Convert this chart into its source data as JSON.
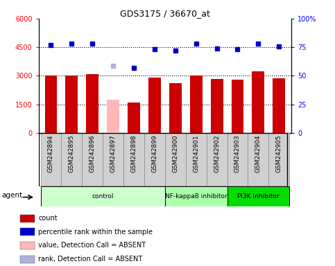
{
  "title": "GDS3175 / 36670_at",
  "samples": [
    "GSM242894",
    "GSM242895",
    "GSM242896",
    "GSM242897",
    "GSM242898",
    "GSM242899",
    "GSM242900",
    "GSM242901",
    "GSM242902",
    "GSM242903",
    "GSM242904",
    "GSM242905"
  ],
  "bar_values": [
    3000,
    3000,
    3100,
    1750,
    1600,
    2900,
    2600,
    3020,
    2820,
    2800,
    3250,
    2880
  ],
  "bar_colors": [
    "#cc0000",
    "#cc0000",
    "#cc0000",
    "#ffb8b8",
    "#cc0000",
    "#cc0000",
    "#cc0000",
    "#cc0000",
    "#cc0000",
    "#cc0000",
    "#cc0000",
    "#cc0000"
  ],
  "dot_values": [
    77,
    78,
    78,
    59,
    57,
    73,
    72,
    78,
    74,
    73,
    78,
    76
  ],
  "dot_colors": [
    "#0000cc",
    "#0000cc",
    "#0000cc",
    "#b0b0dd",
    "#0000cc",
    "#0000cc",
    "#0000cc",
    "#0000cc",
    "#0000cc",
    "#0000cc",
    "#0000cc",
    "#0000cc"
  ],
  "ylim_left": [
    0,
    6000
  ],
  "ylim_right": [
    0,
    100
  ],
  "yticks_left": [
    0,
    1500,
    3000,
    4500,
    6000
  ],
  "ytick_labels_left": [
    "0",
    "1500",
    "3000",
    "4500",
    "6000"
  ],
  "yticks_right": [
    0,
    25,
    50,
    75,
    100
  ],
  "ytick_labels_right": [
    "0",
    "25",
    "50",
    "75",
    "100%"
  ],
  "groups": [
    {
      "label": "control",
      "start": 0,
      "end": 6,
      "color": "#ccffcc"
    },
    {
      "label": "NF-kappaB inhibitor",
      "start": 6,
      "end": 9,
      "color": "#aaffaa"
    },
    {
      "label": "PI3K inhibitor",
      "start": 9,
      "end": 12,
      "color": "#00dd00"
    }
  ],
  "legend_items": [
    {
      "label": "count",
      "color": "#cc0000"
    },
    {
      "label": "percentile rank within the sample",
      "color": "#0000cc"
    },
    {
      "label": "value, Detection Call = ABSENT",
      "color": "#ffb8b8"
    },
    {
      "label": "rank, Detection Call = ABSENT",
      "color": "#b0b0dd"
    }
  ],
  "hlines": [
    1500,
    3000,
    4500
  ]
}
